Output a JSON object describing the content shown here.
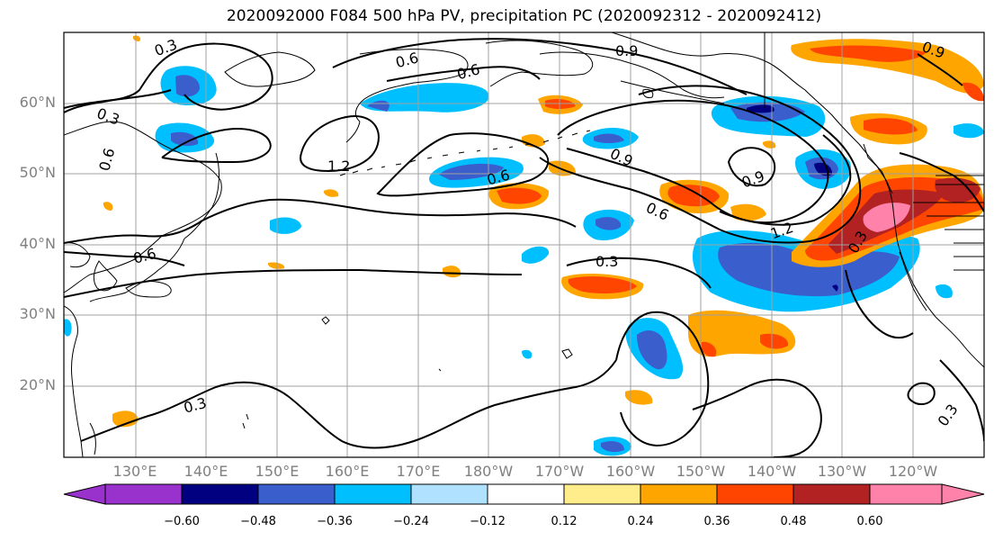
{
  "title": "2020092000 F084 500 hPa PV, precipitation PC (2020092312 - 2020092412)",
  "lat_labels": [
    "60°N",
    "50°N",
    "40°N",
    "30°N",
    "20°N"
  ],
  "lon_labels": [
    "130°E",
    "140°E",
    "150°E",
    "160°E",
    "170°E",
    "180°W",
    "170°W",
    "160°W",
    "150°W",
    "140°W",
    "130°W",
    "120°W"
  ],
  "contour_labels": [
    "0.3",
    "0.9",
    "0.6",
    "0.6",
    "0.3",
    "0.6",
    "1.2",
    "0.6",
    "0.9",
    "0.9",
    "0.6",
    "1.2",
    "0.3",
    "0.6",
    "0.3",
    "0.3",
    "0.3",
    "0.9"
  ],
  "colorbar": {
    "tick_labels": [
      "−0.60",
      "−0.48",
      "−0.36",
      "−0.24",
      "−0.12",
      "0.12",
      "0.24",
      "0.36",
      "0.48",
      "0.60"
    ],
    "colors": [
      "#9932CC",
      "#000080",
      "#3A5FCD",
      "#00BFFF",
      "#B0E2FF",
      "#FFFFFF",
      "#FFEC8B",
      "#FFA500",
      "#FF4500",
      "#B22222",
      "#FF82AB"
    ]
  },
  "colors": {
    "contour": "#000000",
    "coast": "#000000",
    "grid": "#A0A0A0",
    "axis_label": "#808080"
  }
}
